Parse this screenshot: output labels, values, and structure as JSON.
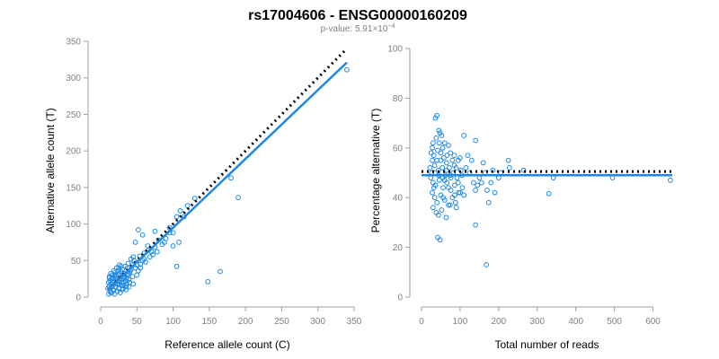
{
  "header": {
    "title": "rs17004606 - ENSG00000160209",
    "pvalue_prefix": "p-value: 5.91",
    "pvalue_times": "×",
    "pvalue_base": "10",
    "pvalue_exp": "−4"
  },
  "colors": {
    "points": "#1e88e5",
    "fit": "#1e88e5",
    "reference_line": "#000000"
  },
  "chart_data": [
    {
      "type": "scatter",
      "title": "",
      "xlabel": "Reference allele count (C)",
      "ylabel": "Alternative allele count (T)",
      "xlim": [
        0,
        350
      ],
      "ylim": [
        0,
        350
      ],
      "xticks": [
        0,
        50,
        100,
        150,
        200,
        250,
        300,
        350
      ],
      "yticks": [
        0,
        50,
        100,
        150,
        200,
        250,
        300,
        350
      ],
      "grid": false,
      "points": [
        [
          12,
          15
        ],
        [
          14,
          18
        ],
        [
          16,
          20
        ],
        [
          18,
          22
        ],
        [
          20,
          25
        ],
        [
          22,
          28
        ],
        [
          24,
          30
        ],
        [
          26,
          32
        ],
        [
          28,
          35
        ],
        [
          30,
          38
        ],
        [
          10,
          12
        ],
        [
          11,
          20
        ],
        [
          13,
          8
        ],
        [
          15,
          25
        ],
        [
          17,
          10
        ],
        [
          19,
          30
        ],
        [
          21,
          14
        ],
        [
          23,
          18
        ],
        [
          25,
          12
        ],
        [
          27,
          26
        ],
        [
          29,
          20
        ],
        [
          31,
          16
        ],
        [
          33,
          28
        ],
        [
          35,
          22
        ],
        [
          37,
          30
        ],
        [
          39,
          24
        ],
        [
          41,
          36
        ],
        [
          12,
          28
        ],
        [
          14,
          32
        ],
        [
          18,
          36
        ],
        [
          22,
          40
        ],
        [
          26,
          44
        ],
        [
          30,
          30
        ],
        [
          34,
          42
        ],
        [
          38,
          46
        ],
        [
          42,
          38
        ],
        [
          46,
          50
        ],
        [
          50,
          44
        ],
        [
          54,
          56
        ],
        [
          58,
          50
        ],
        [
          16,
          14
        ],
        [
          20,
          18
        ],
        [
          24,
          22
        ],
        [
          28,
          16
        ],
        [
          32,
          26
        ],
        [
          36,
          18
        ],
        [
          40,
          34
        ],
        [
          44,
          28
        ],
        [
          48,
          40
        ],
        [
          52,
          36
        ],
        [
          15,
          6
        ],
        [
          19,
          4
        ],
        [
          23,
          8
        ],
        [
          27,
          6
        ],
        [
          31,
          12
        ],
        [
          35,
          10
        ],
        [
          39,
          14
        ],
        [
          25,
          40
        ],
        [
          45,
          55
        ],
        [
          55,
          45
        ],
        [
          60,
          60
        ],
        [
          65,
          70
        ],
        [
          70,
          62
        ],
        [
          75,
          68
        ],
        [
          80,
          78
        ],
        [
          85,
          72
        ],
        [
          90,
          80
        ],
        [
          95,
          88
        ],
        [
          60,
          52
        ],
        [
          66,
          64
        ],
        [
          30,
          10
        ],
        [
          35,
          14
        ],
        [
          40,
          20
        ],
        [
          50,
          30
        ],
        [
          45,
          18
        ],
        [
          55,
          40
        ],
        [
          62,
          48
        ],
        [
          68,
          55
        ],
        [
          72,
          58
        ],
        [
          78,
          62
        ],
        [
          48,
          75
        ],
        [
          52,
          92
        ],
        [
          58,
          85
        ],
        [
          75,
          90
        ],
        [
          88,
          75
        ],
        [
          95,
          95
        ],
        [
          100,
          88
        ],
        [
          105,
          110
        ],
        [
          110,
          118
        ],
        [
          120,
          125
        ],
        [
          100,
          70
        ],
        [
          105,
          42
        ],
        [
          108,
          75
        ],
        [
          115,
          110
        ],
        [
          130,
          135
        ],
        [
          148,
          21
        ],
        [
          165,
          35
        ],
        [
          180,
          163
        ],
        [
          190,
          136
        ],
        [
          340,
          311
        ],
        [
          13,
          22
        ],
        [
          17,
          26
        ],
        [
          21,
          30
        ],
        [
          25,
          18
        ],
        [
          29,
          24
        ],
        [
          33,
          32
        ],
        [
          37,
          40
        ],
        [
          11,
          4
        ],
        [
          14,
          6
        ],
        [
          18,
          9
        ],
        [
          44,
          44
        ],
        [
          38,
          32
        ],
        [
          42,
          52
        ],
        [
          36,
          26
        ],
        [
          32,
          20
        ],
        [
          28,
          42
        ],
        [
          24,
          36
        ],
        [
          20,
          34
        ],
        [
          16,
          30
        ],
        [
          12,
          26
        ]
      ],
      "fit": [
        [
          10,
          10
        ],
        [
          340,
          321
        ]
      ],
      "reference": [
        [
          10,
          10
        ],
        [
          340,
          340
        ]
      ]
    },
    {
      "type": "scatter",
      "title": "",
      "xlabel": "Total number of reads",
      "ylabel": "Percentage alternative (T)",
      "xlim": [
        0,
        650
      ],
      "ylim": [
        0,
        100
      ],
      "xticks": [
        0,
        100,
        200,
        300,
        400,
        500,
        600
      ],
      "yticks": [
        0,
        20,
        40,
        60,
        80,
        100
      ],
      "grid": false,
      "points": [
        [
          36,
          72
        ],
        [
          40,
          73
        ],
        [
          45,
          67
        ],
        [
          30,
          62
        ],
        [
          38,
          64
        ],
        [
          48,
          66
        ],
        [
          52,
          65
        ],
        [
          60,
          62
        ],
        [
          70,
          61
        ],
        [
          55,
          60
        ],
        [
          25,
          58
        ],
        [
          28,
          55
        ],
        [
          32,
          57
        ],
        [
          42,
          59
        ],
        [
          50,
          55
        ],
        [
          58,
          56
        ],
        [
          65,
          54
        ],
        [
          75,
          58
        ],
        [
          85,
          57
        ],
        [
          95,
          55
        ],
        [
          22,
          52
        ],
        [
          26,
          50
        ],
        [
          34,
          53
        ],
        [
          44,
          51
        ],
        [
          54,
          52
        ],
        [
          62,
          49
        ],
        [
          72,
          52
        ],
        [
          82,
          50
        ],
        [
          92,
          48
        ],
        [
          102,
          51
        ],
        [
          24,
          48
        ],
        [
          30,
          46
        ],
        [
          36,
          45
        ],
        [
          46,
          47
        ],
        [
          56,
          44
        ],
        [
          66,
          46
        ],
        [
          76,
          43
        ],
        [
          86,
          45
        ],
        [
          96,
          42
        ],
        [
          106,
          44
        ],
        [
          28,
          42
        ],
        [
          34,
          40
        ],
        [
          40,
          38
        ],
        [
          50,
          41
        ],
        [
          60,
          39
        ],
        [
          70,
          37
        ],
        [
          80,
          40
        ],
        [
          90,
          36
        ],
        [
          100,
          42
        ],
        [
          110,
          41
        ],
        [
          30,
          36
        ],
        [
          38,
          34
        ],
        [
          44,
          33
        ],
        [
          52,
          35
        ],
        [
          64,
          32
        ],
        [
          74,
          37
        ],
        [
          88,
          38
        ],
        [
          42,
          24
        ],
        [
          48,
          23
        ],
        [
          168,
          13
        ],
        [
          110,
          65
        ],
        [
          120,
          57
        ],
        [
          130,
          55
        ],
        [
          140,
          63
        ],
        [
          150,
          48
        ],
        [
          160,
          54
        ],
        [
          170,
          43
        ],
        [
          180,
          46
        ],
        [
          190,
          42
        ],
        [
          200,
          48
        ],
        [
          140,
          29
        ],
        [
          140,
          43
        ],
        [
          156,
          46
        ],
        [
          174,
          38
        ],
        [
          225,
          55
        ],
        [
          228,
          52
        ],
        [
          265,
          51
        ],
        [
          330,
          41.6
        ],
        [
          342,
          48
        ],
        [
          495,
          48
        ],
        [
          645,
          47
        ],
        [
          115,
          52
        ],
        [
          125,
          50
        ],
        [
          135,
          46
        ],
        [
          145,
          45
        ],
        [
          165,
          50
        ],
        [
          185,
          51
        ],
        [
          205,
          50
        ],
        [
          35,
          50
        ],
        [
          45,
          49
        ],
        [
          55,
          48
        ],
        [
          65,
          51
        ],
        [
          75,
          49
        ],
        [
          85,
          53
        ],
        [
          95,
          46
        ],
        [
          105,
          49
        ],
        [
          40,
          55
        ],
        [
          50,
          58
        ],
        [
          60,
          47
        ],
        [
          70,
          44
        ],
        [
          80,
          55
        ],
        [
          90,
          52
        ],
        [
          100,
          56
        ],
        [
          28,
          60
        ],
        [
          32,
          44
        ],
        [
          46,
          62
        ],
        [
          56,
          40
        ],
        [
          66,
          57
        ],
        [
          76,
          48
        ],
        [
          86,
          41
        ]
      ],
      "fit": [
        [
          0,
          49
        ],
        [
          650,
          49
        ]
      ],
      "reference": [
        [
          0,
          50.5
        ],
        [
          650,
          50.5
        ]
      ]
    }
  ]
}
